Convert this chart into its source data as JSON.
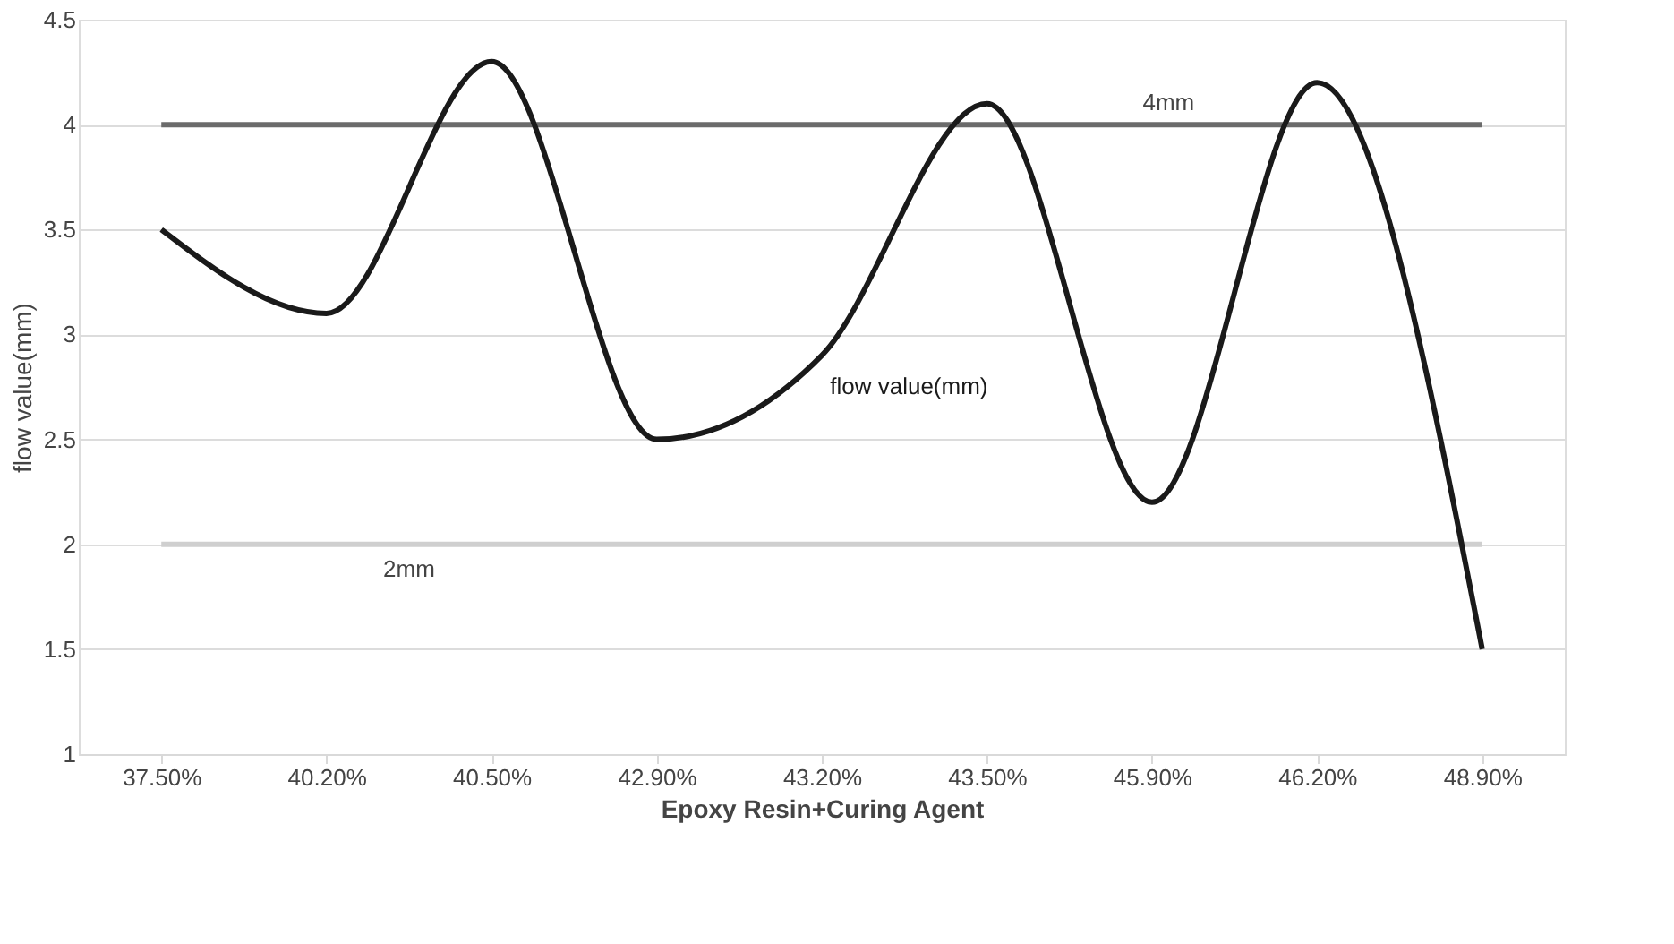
{
  "chart_data": {
    "type": "line",
    "xlabel": "Epoxy Resin+Curing Agent",
    "ylabel": "flow value(mm)",
    "categories": [
      "37.50%",
      "40.20%",
      "40.50%",
      "42.90%",
      "43.20%",
      "43.50%",
      "45.90%",
      "46.20%",
      "48.90%"
    ],
    "series": [
      {
        "name": "flow value(mm)",
        "color": "#1a1a1a",
        "values": [
          3.5,
          3.1,
          4.3,
          2.5,
          2.9,
          4.1,
          2.2,
          4.2,
          1.5
        ]
      }
    ],
    "ylim": [
      1,
      4.5
    ],
    "yticks": [
      1,
      1.5,
      2,
      2.5,
      3,
      3.5,
      4,
      4.5
    ],
    "grid": "y",
    "marker": "none",
    "line_style": "solid",
    "ref_lines": [
      {
        "axis": "y",
        "value": 4,
        "label": "4mm",
        "color": "#6b6b6b"
      },
      {
        "axis": "y",
        "value": 2,
        "label": "2mm",
        "color": "#cfcfcf"
      }
    ]
  }
}
